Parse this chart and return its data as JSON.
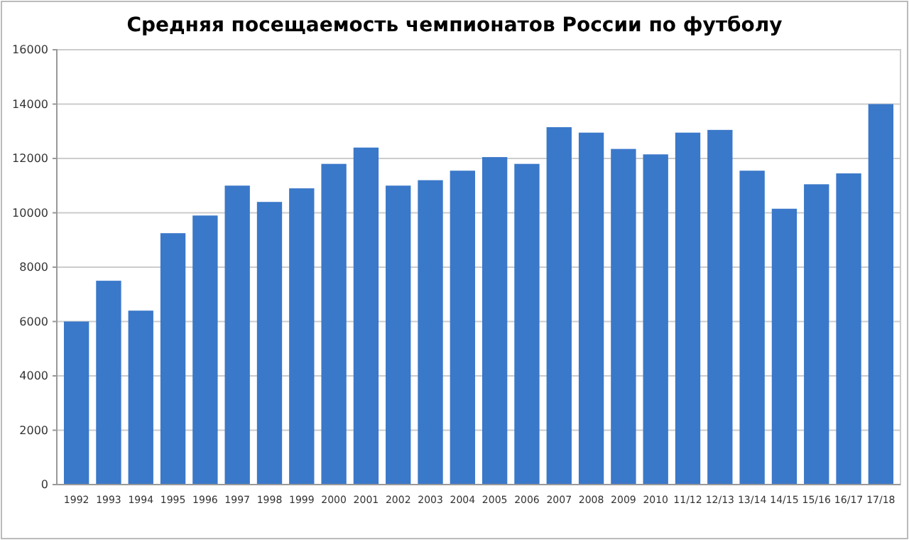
{
  "chart_data": {
    "type": "bar",
    "title": "Средняя посещаемость чемпионатов России по футболу",
    "categories": [
      "1992",
      "1993",
      "1994",
      "1995",
      "1996",
      "1997",
      "1998",
      "1999",
      "2000",
      "2001",
      "2002",
      "2003",
      "2004",
      "2005",
      "2006",
      "2007",
      "2008",
      "2009",
      "2010",
      "11/12",
      "12/13",
      "13/14",
      "14/15",
      "15/16",
      "16/17",
      "17/18"
    ],
    "values": [
      6000,
      7500,
      6400,
      9250,
      9900,
      11000,
      10400,
      10900,
      11800,
      12400,
      11000,
      11200,
      11550,
      12050,
      11800,
      13150,
      12950,
      12350,
      12150,
      12950,
      13050,
      11550,
      10150,
      11050,
      11450,
      14000
    ],
    "color": "#3a78c9",
    "ylim": [
      0,
      16000
    ],
    "yticks": [
      0,
      2000,
      4000,
      6000,
      8000,
      10000,
      12000,
      14000,
      16000
    ],
    "grid": "y"
  }
}
